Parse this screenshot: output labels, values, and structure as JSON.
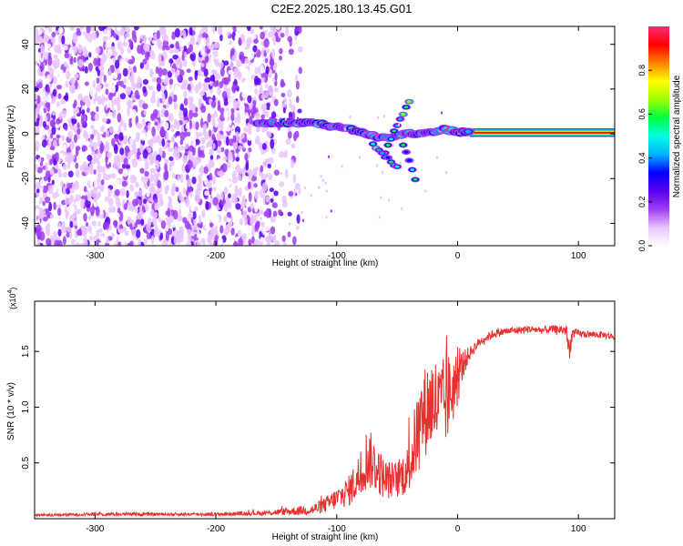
{
  "title": "C2E2.2025.180.13.45.G01",
  "chart_data": [
    {
      "type": "heatmap",
      "xlabel": "Height of straight line (km)",
      "ylabel": "Frequency (Hz)",
      "xlim": [
        -350,
        130
      ],
      "ylim": [
        -50,
        48
      ],
      "xticks": [
        "-300",
        "-200",
        "-100",
        "0",
        "100"
      ],
      "yticks": [
        "-40",
        "-20",
        "0",
        "20",
        "40"
      ],
      "colorbar": {
        "label": "Normalized spectral amplitude",
        "range": [
          0,
          1
        ],
        "ticks": [
          "0.0",
          "0.2",
          "0.4",
          "0.6",
          "0.8"
        ],
        "colors": [
          "#ffffff",
          "#e9c4ff",
          "#9d3cf0",
          "#5a00f0",
          "#0000ff",
          "#00b4ff",
          "#00ffe0",
          "#00ff40",
          "#a0ff00",
          "#ffff00",
          "#ff8000",
          "#ff0000",
          "#ff2a78"
        ]
      },
      "noise_region_x": [
        -350,
        -150
      ],
      "ridge": {
        "x": [
          -165,
          -150,
          -140,
          -130,
          -120,
          -110,
          -100,
          -90,
          -80,
          -70,
          -60,
          -50,
          -45,
          -40,
          -30,
          -20,
          -10,
          0,
          10,
          130
        ],
        "freq": [
          5,
          5,
          5,
          5,
          5,
          4,
          3,
          2,
          1,
          -1,
          -2,
          -1,
          0,
          0,
          0,
          1,
          2,
          1,
          0.5,
          0.5
        ]
      },
      "branch_up": {
        "x": [
          -60,
          -50,
          -40
        ],
        "freq": [
          -8,
          4,
          14
        ]
      },
      "branch_down": {
        "x": [
          -70,
          -60,
          -50
        ],
        "freq": [
          -5,
          -10,
          -15
        ]
      },
      "branch_late": {
        "x": [
          -45,
          -40,
          -35
        ],
        "freq": [
          -5,
          -12,
          -20
        ]
      }
    },
    {
      "type": "line",
      "xlabel": "Height of straight line (km)",
      "ylabel": "SNR (10 * v/v)",
      "y_multiplier": "(x10",
      "y_exponent": "4",
      "y_multiplier_close": ")",
      "xlim": [
        -350,
        130
      ],
      "ylim": [
        0,
        1.95
      ],
      "xticks": [
        "-300",
        "-200",
        "-100",
        "0",
        "100"
      ],
      "yticks": [
        "0.5",
        "1.0",
        "1.5"
      ],
      "color": "#e8312f",
      "series": [
        {
          "x": [
            -350,
            -300,
            -250,
            -200,
            -160,
            -120,
            -110,
            -100,
            -90,
            -80,
            -75,
            -70,
            -60,
            -50,
            -45,
            -40,
            -35,
            -30,
            -25,
            -20,
            -15,
            -10,
            -5,
            0,
            5,
            10,
            15,
            20,
            25,
            30,
            40,
            50,
            60,
            70,
            80,
            90,
            92,
            95,
            100,
            110,
            120,
            130
          ],
          "y": [
            0.03,
            0.04,
            0.04,
            0.04,
            0.05,
            0.08,
            0.12,
            0.18,
            0.25,
            0.4,
            0.55,
            0.5,
            0.35,
            0.35,
            0.4,
            0.45,
            0.7,
            0.9,
            1.0,
            1.05,
            1.0,
            1.05,
            1.15,
            1.25,
            1.4,
            1.48,
            1.55,
            1.6,
            1.63,
            1.66,
            1.68,
            1.69,
            1.7,
            1.69,
            1.7,
            1.69,
            1.5,
            1.66,
            1.66,
            1.65,
            1.65,
            1.63
          ],
          "jitter": [
            0.01,
            0.015,
            0.015,
            0.015,
            0.02,
            0.05,
            0.07,
            0.1,
            0.14,
            0.22,
            0.28,
            0.25,
            0.18,
            0.16,
            0.2,
            0.22,
            0.35,
            0.4,
            0.42,
            0.45,
            0.4,
            0.42,
            0.35,
            0.25,
            0.12,
            0.06,
            0.05,
            0.04,
            0.04,
            0.04,
            0.035,
            0.035,
            0.035,
            0.035,
            0.035,
            0.05,
            0.12,
            0.05,
            0.035,
            0.03,
            0.03,
            0.03
          ]
        }
      ]
    }
  ]
}
